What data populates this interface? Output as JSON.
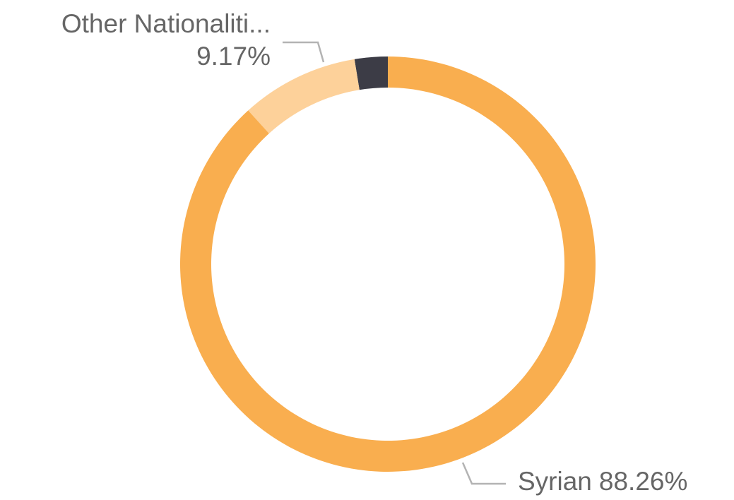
{
  "chart_data": {
    "type": "donut",
    "categories": [
      "Syrian",
      "Other Nationaliti...",
      null
    ],
    "values": [
      88.26,
      9.17,
      2.57
    ],
    "value_labels": [
      "88.26%",
      "9.17%",
      null
    ],
    "colors": [
      "#f9ae4f",
      "#fdd19a",
      "#3c3c46"
    ]
  }
}
